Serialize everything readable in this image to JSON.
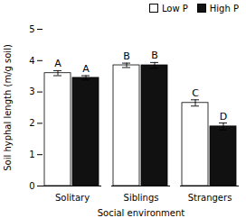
{
  "chart_data": {
    "type": "bar",
    "categories": [
      "Solitary",
      "Siblings",
      "Strangers"
    ],
    "series": [
      {
        "name": "Low P",
        "color": "#ffffff",
        "values": [
          3.6,
          3.85,
          2.65
        ],
        "errors": [
          0.08,
          0.07,
          0.1
        ],
        "labels": [
          "A",
          "B",
          "C"
        ]
      },
      {
        "name": "High P",
        "color": "#111111",
        "values": [
          3.45,
          3.85,
          1.9
        ],
        "errors": [
          0.07,
          0.09,
          0.11
        ],
        "labels": [
          "A",
          "B",
          "D"
        ]
      }
    ],
    "xlabel": "Social environment",
    "ylabel": "Soil hyphal length (m/g soil)",
    "ylim": [
      0,
      5
    ],
    "yticks": [
      0,
      1,
      2,
      3,
      4,
      5
    ],
    "grid": false,
    "legend": "upper right"
  }
}
